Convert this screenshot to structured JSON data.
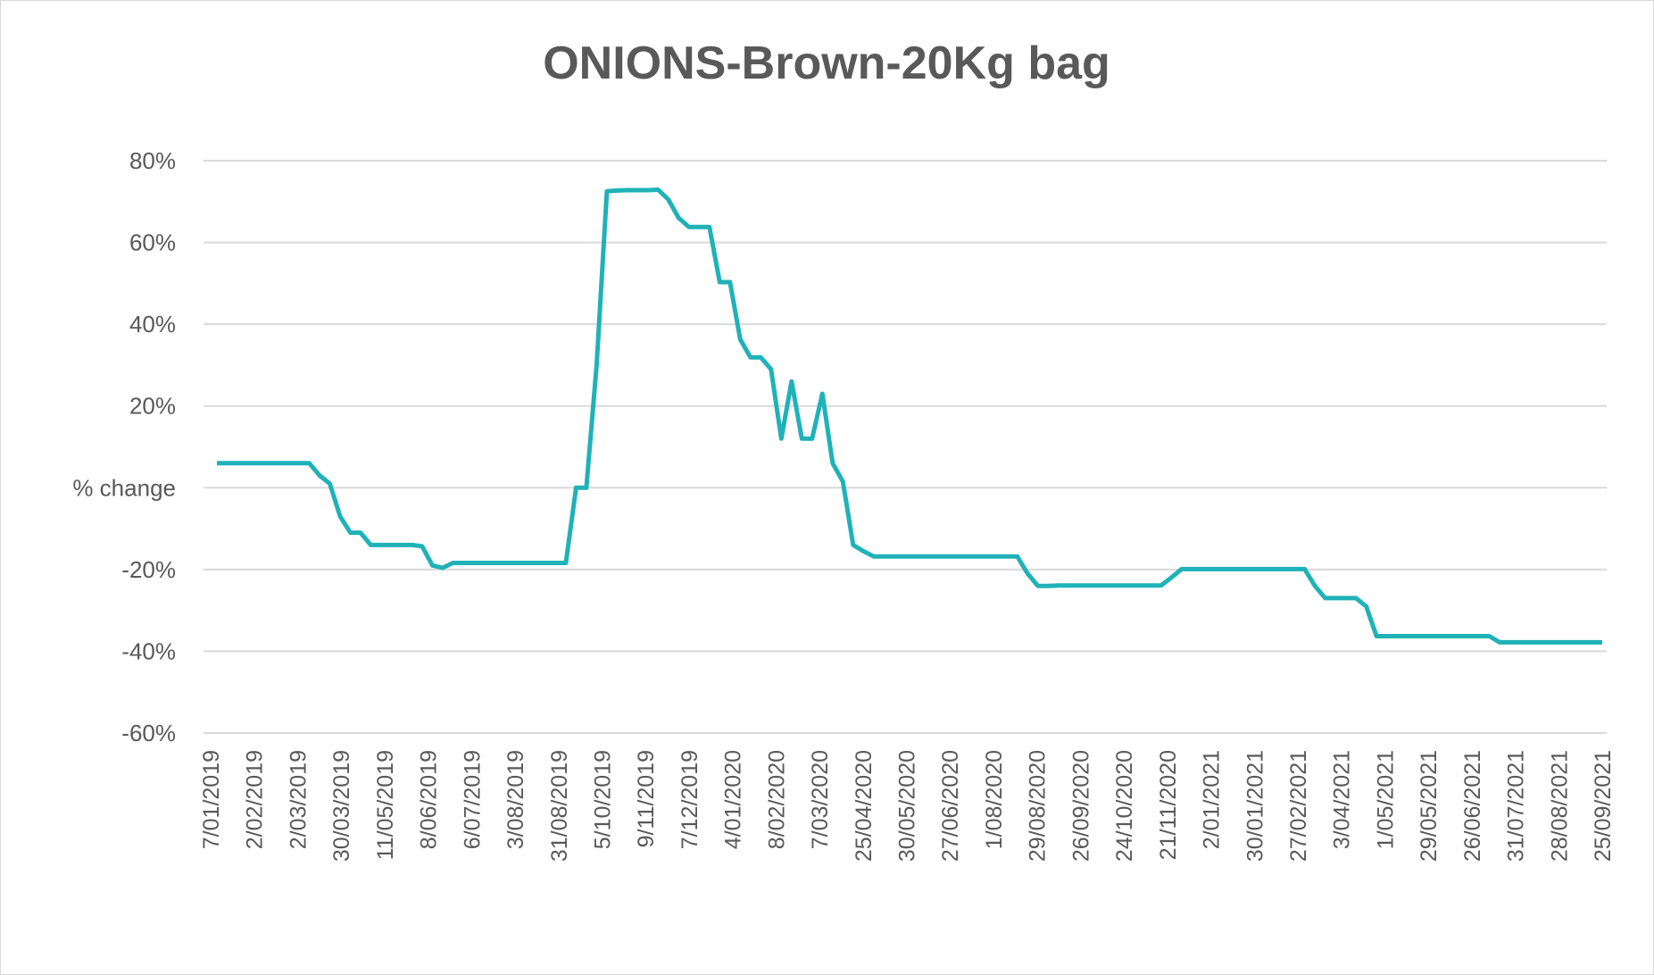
{
  "chart_data": {
    "type": "line",
    "title": "ONIONS-Brown-20Kg bag",
    "xlabel": "",
    "ylabel": "",
    "ylim": [
      -60,
      80
    ],
    "yticks": [
      80,
      60,
      40,
      20,
      0,
      -20,
      -40,
      -60
    ],
    "ytick_labels": [
      "80%",
      "60%",
      "40%",
      "20%",
      "% change",
      "-20%",
      "-40%",
      "-60%"
    ],
    "xtick_labels": [
      "7/01/2019",
      "2/02/2019",
      "2/03/2019",
      "30/03/2019",
      "11/05/2019",
      "8/06/2019",
      "6/07/2019",
      "3/08/2019",
      "31/08/2019",
      "5/10/2019",
      "9/11/2019",
      "7/12/2019",
      "4/01/2020",
      "8/02/2020",
      "7/03/2020",
      "25/04/2020",
      "30/05/2020",
      "27/06/2020",
      "1/08/2020",
      "29/08/2020",
      "26/09/2020",
      "24/10/2020",
      "21/11/2020",
      "2/01/2021",
      "30/01/2021",
      "27/02/2021",
      "3/04/2021",
      "1/05/2021",
      "29/05/2021",
      "26/06/2021",
      "31/07/2021",
      "28/08/2021",
      "25/09/2021"
    ],
    "grid": true,
    "legend": "none",
    "line_color": "#1fb2b8",
    "series": [
      {
        "name": "",
        "values": [
          6.0,
          6.0,
          6.0,
          6.0,
          6.0,
          6.0,
          6.0,
          6.0,
          6.0,
          6.0,
          3.0,
          1.0,
          -7.0,
          -11.0,
          -11.0,
          -14.0,
          -14.0,
          -14.0,
          -14.0,
          -14.0,
          -14.3,
          -19.0,
          -19.6,
          -18.4,
          -18.4,
          -18.4,
          -18.4,
          -18.4,
          -18.4,
          -18.4,
          -18.4,
          -18.4,
          -18.4,
          -18.4,
          -18.4,
          0.0,
          0.0,
          30.0,
          72.5,
          72.7,
          72.8,
          72.8,
          72.8,
          72.9,
          70.5,
          66.0,
          63.8,
          63.8,
          63.8,
          50.3,
          50.3,
          36.3,
          31.9,
          31.9,
          29.0,
          12.0,
          26.0,
          12.0,
          12.0,
          23.0,
          6.0,
          1.5,
          -14.0,
          -15.5,
          -16.8,
          -16.8,
          -16.8,
          -16.8,
          -16.8,
          -16.8,
          -16.8,
          -16.8,
          -16.8,
          -16.8,
          -16.8,
          -16.8,
          -16.8,
          -16.8,
          -16.8,
          -21.0,
          -24.0,
          -24.0,
          -23.9,
          -23.9,
          -23.9,
          -23.9,
          -23.9,
          -23.9,
          -23.9,
          -23.9,
          -23.9,
          -23.9,
          -23.9,
          -22.0,
          -19.9,
          -19.9,
          -19.9,
          -19.9,
          -19.9,
          -19.9,
          -19.9,
          -19.9,
          -19.9,
          -19.9,
          -19.9,
          -19.9,
          -19.9,
          -24.0,
          -27.0,
          -27.0,
          -27.0,
          -27.0,
          -29.0,
          -36.3,
          -36.3,
          -36.3,
          -36.3,
          -36.3,
          -36.3,
          -36.3,
          -36.3,
          -36.3,
          -36.3,
          -36.3,
          -36.3,
          -37.8,
          -37.8,
          -37.8,
          -37.8,
          -37.8,
          -37.8,
          -37.8,
          -37.8,
          -37.8,
          -37.8,
          -37.8
        ]
      }
    ]
  }
}
